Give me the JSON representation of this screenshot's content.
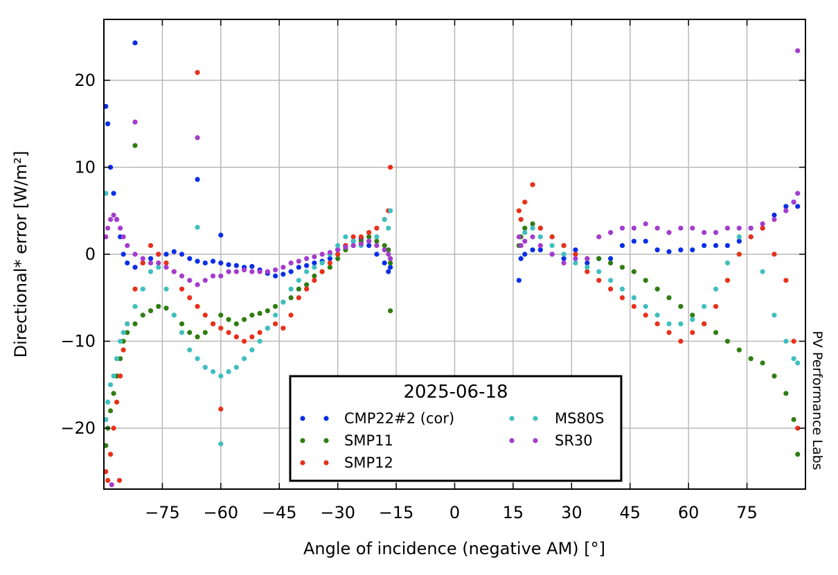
{
  "chart_data": {
    "type": "scatter",
    "title": "",
    "xlabel": "Angle of incidence (negative AM) [°]",
    "ylabel": "Directional* error [W/m²]",
    "xlim": [
      -90,
      90
    ],
    "ylim": [
      -27,
      27
    ],
    "xticks": [
      -75,
      -60,
      -45,
      -30,
      -15,
      0,
      15,
      30,
      45,
      60,
      75
    ],
    "xtick_labels": [
      "−75",
      "−60",
      "−45",
      "−30",
      "−15",
      "0",
      "15",
      "30",
      "45",
      "60",
      "75"
    ],
    "yticks": [
      -20,
      -10,
      0,
      10,
      20
    ],
    "ytick_labels": [
      "−20",
      "−10",
      "0",
      "10",
      "20"
    ],
    "grid": true,
    "legend": {
      "title": "2025-06-18",
      "position": "bottom-center",
      "columns": 2
    },
    "watermark": "PV Performance Labs",
    "series": [
      {
        "name": "CMP22#2 (cor)",
        "color": "#0a2ee6",
        "x": [
          -89.5,
          -89,
          -88.3,
          -87.5,
          -86.7,
          -85.8,
          -85,
          -84,
          -82,
          -80,
          -78,
          -76,
          -74,
          -72,
          -70,
          -68,
          -66,
          -64,
          -62,
          -60,
          -58,
          -56,
          -54,
          -52,
          -50,
          -48,
          -46,
          -44,
          -42,
          -40,
          -38,
          -36,
          -34,
          -32,
          -30,
          -28,
          -26,
          -24,
          -22,
          -20,
          -18,
          -17,
          -16.5,
          16.5,
          17,
          18,
          20,
          22,
          25,
          28,
          31,
          34,
          37,
          40,
          43,
          46,
          49,
          52,
          55,
          58,
          61,
          64,
          67,
          70,
          73,
          76,
          79,
          82,
          85,
          87,
          88,
          -82,
          -60,
          -66
        ],
        "y": [
          17,
          15,
          10,
          7,
          4,
          2,
          0,
          -1,
          -1.5,
          -1,
          -0.5,
          0,
          0,
          0.3,
          0,
          -0.5,
          -0.8,
          -1,
          -0.8,
          -1,
          -1.2,
          -1.3,
          -1.5,
          -1.4,
          -1.8,
          -2.2,
          -2.5,
          -2.3,
          -2,
          -1.5,
          -1.3,
          -1,
          -0.8,
          -0.5,
          0.5,
          1,
          1.5,
          1.8,
          1,
          0,
          -1,
          -2,
          -1.5,
          -3,
          -0.5,
          0,
          0.5,
          0.5,
          0,
          -0.5,
          0.5,
          -1,
          -0.5,
          -0.5,
          1,
          1.5,
          1.5,
          0.5,
          0.3,
          0.5,
          0.5,
          1,
          1,
          1,
          1.5,
          2,
          3,
          4.5,
          5.5,
          6,
          5.5,
          24.3,
          2.2,
          8.6
        ]
      },
      {
        "name": "SMP11",
        "color": "#2f7d12",
        "x": [
          -89.5,
          -89,
          -88.3,
          -87.5,
          -86.7,
          -85.8,
          -85,
          -84,
          -82,
          -80,
          -78,
          -76,
          -74,
          -72,
          -70,
          -68,
          -66,
          -64,
          -62,
          -60,
          -58,
          -56,
          -54,
          -52,
          -50,
          -48,
          -46,
          -44,
          -42,
          -40,
          -38,
          -36,
          -34,
          -32,
          -30,
          -28,
          -26,
          -24,
          -22,
          -20,
          -18,
          -17,
          -16.5,
          16.5,
          17,
          18,
          20,
          22,
          25,
          28,
          31,
          34,
          37,
          40,
          43,
          46,
          49,
          52,
          55,
          58,
          61,
          64,
          67,
          70,
          73,
          76,
          79,
          82,
          85,
          87,
          88,
          -82,
          -16.5
        ],
        "y": [
          -22,
          -20,
          -18,
          -16,
          -14,
          -12,
          -10,
          -9,
          -8,
          -7,
          -6.5,
          -6,
          -6.2,
          -7,
          -8,
          -9,
          -9.5,
          -9,
          -8,
          -7,
          -7.5,
          -8,
          -7.5,
          -7,
          -6.8,
          -6.5,
          -6,
          -5.5,
          -5,
          -4,
          -3.5,
          -2.5,
          -2,
          -1.5,
          -0.5,
          0.5,
          1,
          1.5,
          2,
          1.5,
          1,
          0.5,
          -1,
          1,
          2,
          3,
          3.5,
          3,
          2,
          1,
          0,
          -0.5,
          -0.5,
          -1,
          -1.5,
          -2,
          -3,
          -4,
          -5,
          -6,
          -7,
          -8,
          -9,
          -10,
          -11,
          -12,
          -12.5,
          -14,
          -16,
          -19,
          -23,
          12.5,
          -6.5
        ]
      },
      {
        "name": "SMP12",
        "color": "#e8301a",
        "x": [
          -89.5,
          -89,
          -88.3,
          -87.5,
          -86.7,
          -85.8,
          -85,
          -84,
          -82,
          -80,
          -78,
          -76,
          -74,
          -72,
          -70,
          -68,
          -66,
          -64,
          -62,
          -60,
          -58,
          -56,
          -54,
          -52,
          -50,
          -48,
          -46,
          -44,
          -42,
          -40,
          -38,
          -36,
          -34,
          -32,
          -30,
          -28,
          -26,
          -24,
          -22,
          -20,
          -18,
          -17,
          -16.5,
          16.5,
          17,
          18,
          20,
          22,
          25,
          28,
          31,
          34,
          37,
          40,
          43,
          46,
          49,
          52,
          55,
          58,
          61,
          64,
          67,
          70,
          73,
          76,
          79,
          82,
          85,
          87,
          88,
          -66,
          -60,
          -86
        ],
        "y": [
          -25,
          -26,
          -23,
          -20,
          -17,
          -14,
          -11,
          -8,
          -4,
          -1,
          1,
          0,
          -1,
          -2,
          -4,
          -5,
          -6,
          -7,
          -8,
          -8.5,
          -9,
          -9.5,
          -10,
          -9.5,
          -9,
          -8.5,
          -8,
          -8.5,
          -7,
          -5,
          -4,
          -3,
          -2,
          -1,
          0,
          1,
          2,
          2,
          2.5,
          3,
          4,
          5,
          10,
          5,
          4,
          6,
          8,
          3,
          2,
          1,
          0,
          -2,
          -3,
          -4,
          -5,
          -6,
          -7,
          -8,
          -9,
          -10,
          -9,
          -8,
          -6,
          -3,
          0,
          2,
          3,
          0,
          -3,
          -10,
          -20,
          20.9,
          -17.8,
          -26
        ]
      },
      {
        "name": "MS80S",
        "color": "#3fbfbf",
        "x": [
          -89.5,
          -89,
          -88.3,
          -87.5,
          -86.7,
          -85.8,
          -85,
          -84,
          -82,
          -80,
          -78,
          -76,
          -74,
          -72,
          -70,
          -68,
          -66,
          -64,
          -62,
          -60,
          -58,
          -56,
          -54,
          -52,
          -50,
          -48,
          -46,
          -44,
          -42,
          -40,
          -38,
          -36,
          -34,
          -32,
          -30,
          -28,
          -26,
          -24,
          -22,
          -20,
          -18,
          -17,
          -16.5,
          16.5,
          17,
          18,
          20,
          22,
          25,
          28,
          31,
          34,
          37,
          40,
          43,
          46,
          49,
          52,
          55,
          58,
          61,
          64,
          67,
          70,
          73,
          76,
          79,
          82,
          85,
          87,
          88,
          -66,
          -60,
          -89.5
        ],
        "y": [
          -19,
          -17,
          -15,
          -14,
          -12,
          -10,
          -9,
          -8,
          -6,
          -4,
          -2,
          -1.5,
          -4,
          -7,
          -9,
          -11,
          -12,
          -13,
          -13.5,
          -14,
          -13.5,
          -13,
          -12,
          -11,
          -10,
          -8.5,
          -7,
          -5.5,
          -4,
          -3,
          -2,
          -1.5,
          -1,
          0,
          1,
          2,
          1.5,
          1,
          1.5,
          2,
          4,
          3,
          5,
          2,
          1,
          2.5,
          3,
          2,
          1,
          0,
          -1,
          -1.5,
          -2,
          -3,
          -4,
          -5,
          -6,
          -7,
          -8,
          -8,
          -7.5,
          -6,
          -4,
          -1,
          2,
          3,
          -2,
          -7,
          -10,
          -12,
          -12.5,
          3.1,
          -21.8,
          7
        ]
      },
      {
        "name": "SR30",
        "color": "#a43ccd",
        "x": [
          -89.5,
          -89,
          -88.3,
          -87.5,
          -86.7,
          -85.8,
          -85,
          -84,
          -82,
          -80,
          -78,
          -76,
          -74,
          -72,
          -70,
          -68,
          -66,
          -64,
          -62,
          -60,
          -58,
          -56,
          -54,
          -52,
          -50,
          -48,
          -46,
          -44,
          -42,
          -40,
          -38,
          -36,
          -34,
          -32,
          -30,
          -28,
          -26,
          -24,
          -22,
          -20,
          -18,
          -17,
          -16.5,
          16.5,
          17,
          18,
          20,
          22,
          25,
          28,
          31,
          34,
          37,
          40,
          43,
          46,
          49,
          52,
          55,
          58,
          61,
          64,
          67,
          70,
          73,
          76,
          79,
          82,
          85,
          87,
          88,
          -82,
          -66,
          88,
          -88
        ],
        "y": [
          2,
          3,
          4,
          4.5,
          4,
          3,
          2,
          1,
          0,
          -0.5,
          -1,
          -1,
          -1.5,
          -2,
          -2.5,
          -3,
          -3.5,
          -3,
          -2.5,
          -2.5,
          -2,
          -2,
          -1.8,
          -2,
          -2,
          -2,
          -1.8,
          -1.5,
          -1,
          -0.8,
          -0.5,
          -0.3,
          0,
          0.2,
          0.5,
          0.8,
          1,
          1.2,
          1.5,
          1,
          0.5,
          0,
          -0.5,
          2,
          1,
          1.5,
          2,
          1,
          0,
          -1,
          -0.5,
          -0.5,
          2,
          2.5,
          3,
          3,
          3.5,
          3,
          2.5,
          3,
          3,
          2.5,
          2.5,
          3,
          3,
          3,
          3.5,
          4,
          5,
          6,
          7,
          15.2,
          13.4,
          23.4,
          -26.5
        ]
      }
    ]
  }
}
